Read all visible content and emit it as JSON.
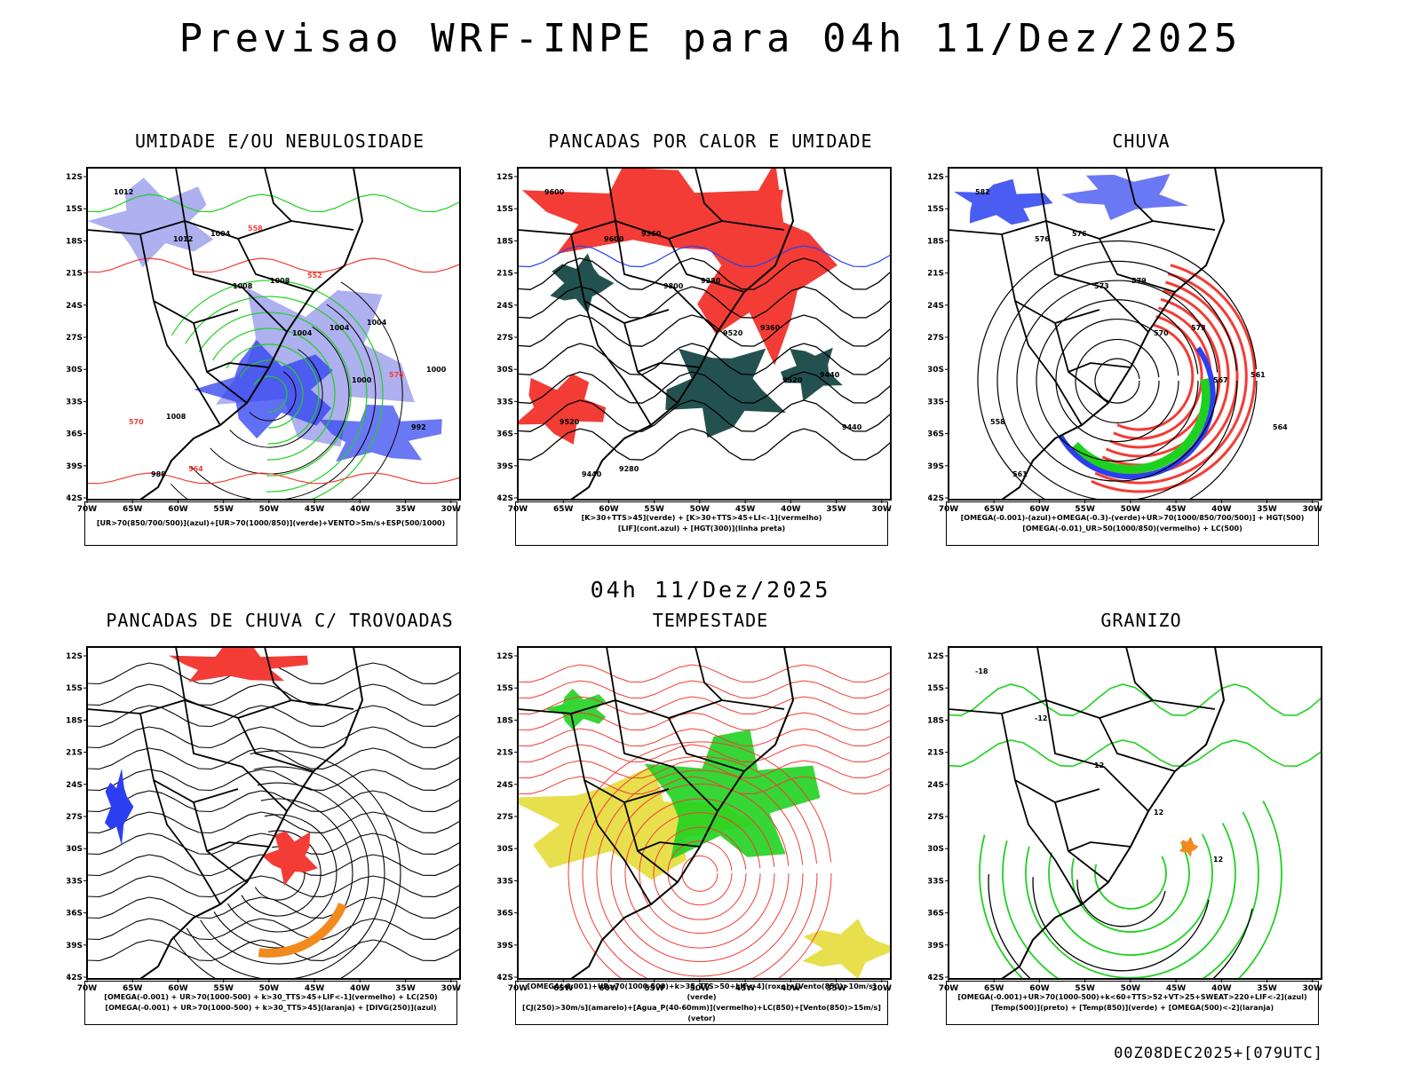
{
  "header": {
    "title": "Previsao WRF-INPE  para 04h 11/Dez/2025"
  },
  "middle": {
    "title": "04h 11/Dez/2025"
  },
  "footer": {
    "run": "00Z08DEC2025+[079UTC]"
  },
  "axes": {
    "lat_labels": [
      "12S",
      "15S",
      "18S",
      "21S",
      "24S",
      "27S",
      "30S",
      "33S",
      "36S",
      "39S",
      "42S"
    ],
    "lon_labels": [
      "70W",
      "65W",
      "60W",
      "55W",
      "50W",
      "45W",
      "40W",
      "35W",
      "30W"
    ]
  },
  "colors": {
    "red": "#f23c35",
    "green": "#1fd11f",
    "blue": "#2c3ff0",
    "lightblue": "#aeb0f0",
    "darkteal": "#23514f",
    "yellow": "#e5dc3a",
    "orange": "#f28a1e"
  },
  "panels": [
    {
      "title": "UMIDADE E/OU NEBULOSIDADE",
      "legend": [
        "[UR>70(850/700/500)](azul)+[UR>70(1000/850)](verde)+VENTO>5m/s+ESP(500/1000)"
      ],
      "labels": [
        "1012",
        "1012",
        "1008",
        "1004",
        "1000",
        "992",
        "988",
        "1004",
        "1008",
        "1004",
        "576",
        "570",
        "564",
        "558",
        "552",
        "1004",
        "1000",
        "1008"
      ]
    },
    {
      "title": "PANCADAS POR CALOR E UMIDADE",
      "legend": [
        "[K>30+TTS>45](verde) + [K>30+TTS>45+LI<-1](vermelho)",
        "[LIF](cont.azul) + [HGT(300)](linha preta)"
      ],
      "labels": [
        "9600",
        "9600",
        "9800",
        "9520",
        "9520",
        "9440",
        "9440",
        "9360",
        "9280",
        "9360",
        "9440",
        "9520",
        "9280"
      ]
    },
    {
      "title": "CHUVA",
      "legend": [
        "[OMEGA(-0.001)-(azul)+OMEGA(-0.3)-(verde)+UR>70(1000/850/700/500)] + HGT(500)",
        "[OMEGA(-0.01)_UR>50(1000/850)(vermelho) + LC(500)"
      ],
      "labels": [
        "582",
        "576",
        "573",
        "570",
        "567",
        "564",
        "561",
        "576",
        "579",
        "573",
        "561",
        "558"
      ]
    },
    {
      "title": "PANCADAS DE CHUVA C/ TROVOADAS",
      "legend": [
        "[OMEGA(-0.001) + UR>70(1000-500) + k>30_TTS>45+LIF<-1](vermelho) + LC(250)",
        "[OMEGA(-0.001) + UR>70(1000-500) + k>30_TTS>45](laranja) + [DIVG(250)](azul)"
      ],
      "labels": []
    },
    {
      "title": "TEMPESTADE",
      "legend": [
        "[OMEGA(-0.001)+UR>70(1000-500)+k>35_TTS>50+LIF<-4](roxo)+[Vento(850)>10m/s](verde)",
        "[CJ(250)>30m/s](amarelo)+[Agua_P(40-60mm)](vermelho)+LC(850)+[Vento(850)>15m/s](vetor)"
      ],
      "labels": []
    },
    {
      "title": "GRANIZO",
      "legend": [
        "[OMEGA(-0.001)+UR>70(1000-500)+k<60+TTS>52+VT>25+SWEAT>220+LIF<-2](azul)",
        "[Temp(500)](preto) + [Temp(850)](verde) + [OMEGA(500)<-2](laranja)"
      ],
      "labels": [
        "-18",
        "-12",
        "12",
        "12",
        "12"
      ]
    }
  ]
}
